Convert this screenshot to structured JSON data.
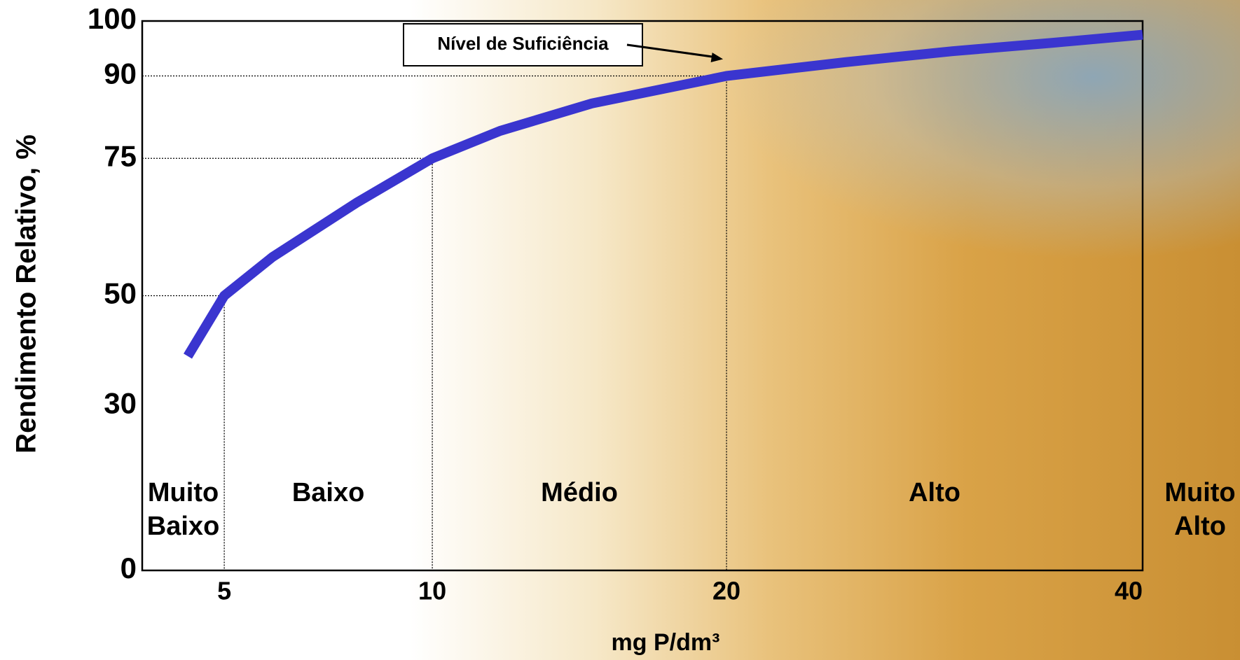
{
  "chart_data": {
    "type": "line",
    "y_label": "Rendimento Relativo, %",
    "x_label": "mg P/dm³",
    "x_scale": "sqrt",
    "x": [
      4.3,
      5,
      6,
      8,
      10,
      12,
      15,
      20,
      25,
      30,
      35,
      40
    ],
    "values": [
      39,
      50,
      57,
      67,
      75,
      80,
      85,
      90,
      92.5,
      94.5,
      96,
      97.5
    ],
    "color": "#3a35cf",
    "xlim": [
      3.5,
      40
    ],
    "xticks": [
      5,
      10,
      20,
      40
    ],
    "ylim": [
      0,
      100
    ],
    "yticks": [
      0,
      30,
      50,
      75,
      90,
      100
    ],
    "grid": false,
    "reference_points": [
      {
        "x": 5,
        "y": 50
      },
      {
        "x": 10,
        "y": 75
      },
      {
        "x": 20,
        "y": 90
      }
    ],
    "annotation": "Nível de Suficiência",
    "zones": [
      [
        "Muito",
        "Baixo"
      ],
      [
        "Baixo"
      ],
      [
        "Médio"
      ],
      [
        "Alto"
      ],
      [
        "Muito",
        "Alto"
      ]
    ]
  }
}
